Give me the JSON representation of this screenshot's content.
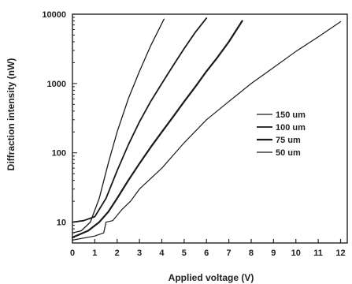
{
  "chart_data": {
    "type": "line",
    "title": "",
    "xlabel": "Applied voltage (V)",
    "ylabel": "Diffraction intensity (nW)",
    "xlim": [
      0,
      12.3
    ],
    "ylim": [
      5,
      10000
    ],
    "yscale": "log",
    "xticks": [
      0,
      1,
      2,
      3,
      4,
      5,
      6,
      7,
      8,
      9,
      10,
      11,
      12
    ],
    "yticks": [
      10,
      100,
      1000,
      10000
    ],
    "grid": false,
    "legend_position": "right-middle",
    "series": [
      {
        "name": "150 um",
        "x": [
          0,
          0.4,
          0.8,
          1.2,
          1.6,
          2.0,
          2.5,
          3.0,
          3.5,
          4.1
        ],
        "y": [
          7,
          7.5,
          10,
          22,
          70,
          200,
          600,
          1500,
          3500,
          8500
        ]
      },
      {
        "name": "100 um",
        "x": [
          0,
          0.5,
          1.0,
          1.5,
          2.0,
          2.5,
          3.0,
          3.5,
          4.0,
          4.5,
          5.0,
          5.5,
          6.0
        ],
        "y": [
          10,
          10.5,
          12,
          22,
          55,
          130,
          280,
          550,
          1000,
          1800,
          3200,
          5500,
          8800
        ]
      },
      {
        "name": "75 um",
        "x": [
          0,
          0.7,
          1.2,
          1.6,
          2.0,
          2.5,
          3.0,
          3.5,
          4.0,
          4.5,
          5.0,
          5.5,
          6.0,
          6.5,
          7.0,
          7.6
        ],
        "y": [
          6,
          7.5,
          10,
          14,
          22,
          40,
          70,
          120,
          200,
          330,
          550,
          900,
          1500,
          2400,
          4000,
          8000
        ]
      },
      {
        "name": "50 um",
        "x": [
          0,
          1.0,
          1.4,
          1.5,
          1.8,
          2.2,
          2.6,
          3.0,
          4.0,
          5.0,
          6.0,
          7.0,
          8.0,
          9.0,
          10.0,
          11.0,
          12.0
        ],
        "y": [
          5.5,
          6.3,
          7,
          10,
          10.5,
          15,
          20,
          30,
          60,
          140,
          300,
          550,
          1000,
          1700,
          2900,
          4700,
          7800
        ]
      }
    ]
  }
}
